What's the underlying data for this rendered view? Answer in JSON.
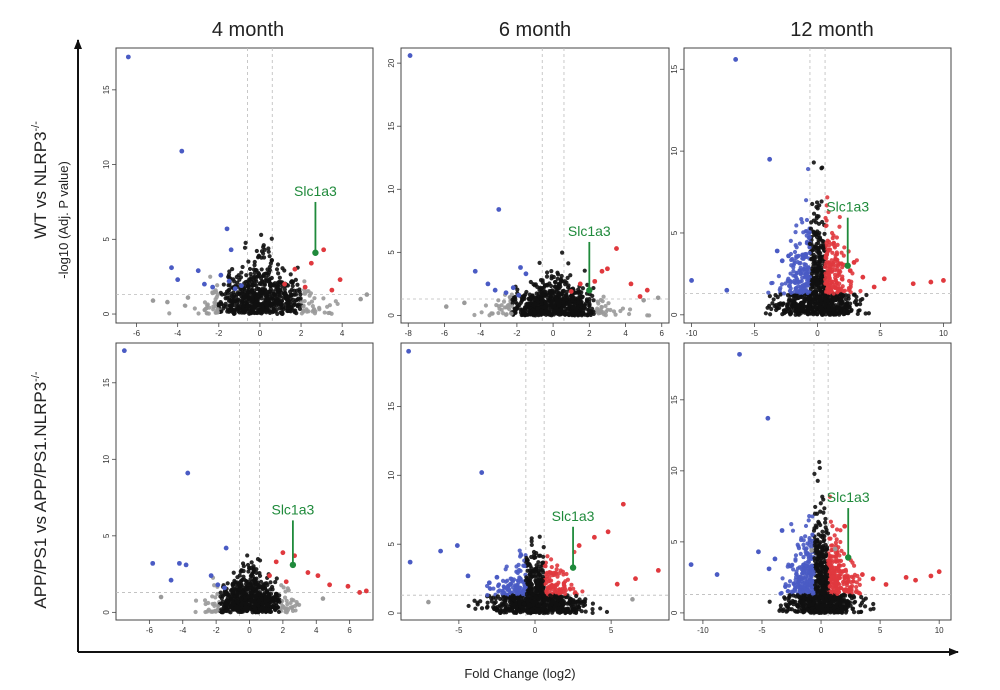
{
  "figure": {
    "column_titles": [
      "4 month",
      "6 month",
      "12 month"
    ],
    "row_labels": {
      "top": {
        "base": "WT vs NLRP3",
        "sup": "-/-"
      },
      "bottom": {
        "base": "APP/PS1 vs APP/PS1.NLRP3",
        "sup": "-/-"
      }
    },
    "ylabel": "-log10 (Adj. P value)",
    "xlabel": "Fold Change (log2)"
  },
  "colors": {
    "up": "#e0393e",
    "down": "#4a5bc4",
    "ns": "#111111",
    "ns_light": "#9a9a9a",
    "annotation": "#1f8a3b",
    "frame": "#444444",
    "guide": "#bbbbbb"
  },
  "chart_data": [
    {
      "type": "scatter",
      "title": "WT vs NLRP3-/- 4 month",
      "xlim": [
        -7,
        5.5
      ],
      "ylim": [
        -0.6,
        17.8
      ],
      "xticks": [
        -6,
        -4,
        -2,
        0,
        2,
        4
      ],
      "yticks": [
        0,
        5,
        10,
        15
      ],
      "fc_threshold": 0.6,
      "p_threshold": 1.3,
      "cloud": {
        "xspread": 4.5,
        "ymax": 2.5,
        "n": 650
      },
      "highlight": {
        "label": "Slc1a3",
        "x": 2.7,
        "y": 4.1,
        "label_y": 7.9
      },
      "down_points": [
        [
          -6.4,
          17.2
        ],
        [
          -3.8,
          10.9
        ],
        [
          -1.6,
          5.7
        ],
        [
          -4.3,
          3.1
        ],
        [
          -4.0,
          2.3
        ],
        [
          -3.0,
          2.9
        ],
        [
          -2.7,
          2.0
        ],
        [
          -2.3,
          1.8
        ],
        [
          -1.9,
          2.6
        ],
        [
          -1.5,
          2.2
        ],
        [
          -1.4,
          4.3
        ],
        [
          -1.2,
          1.7
        ],
        [
          -0.9,
          1.9
        ]
      ],
      "up_points": [
        [
          3.1,
          4.3
        ],
        [
          2.5,
          3.4
        ],
        [
          3.9,
          2.3
        ],
        [
          1.7,
          3.0
        ],
        [
          1.2,
          2.0
        ],
        [
          2.2,
          1.8
        ],
        [
          3.5,
          1.6
        ]
      ],
      "ns_points": [
        [
          4.9,
          1.0
        ],
        [
          5.2,
          1.3
        ],
        [
          -5.2,
          0.9
        ],
        [
          -4.5,
          0.8
        ],
        [
          -3.5,
          1.1
        ]
      ]
    },
    {
      "type": "scatter",
      "title": "WT vs NLRP3-/- 6 month",
      "xlim": [
        -8.4,
        6.4
      ],
      "ylim": [
        -0.6,
        21.2
      ],
      "xticks": [
        -8,
        -6,
        -4,
        -2,
        0,
        2,
        4,
        6
      ],
      "yticks": [
        0,
        5,
        10,
        15,
        20
      ],
      "fc_threshold": 0.6,
      "p_threshold": 1.3,
      "cloud": {
        "xspread": 5,
        "ymax": 2.0,
        "n": 700
      },
      "highlight": {
        "label": "Slc1a3",
        "x": 2.0,
        "y": 2.0,
        "label_y": 6.3
      },
      "down_points": [
        [
          -7.9,
          20.6
        ],
        [
          -3.0,
          8.4
        ],
        [
          -4.3,
          3.5
        ],
        [
          -1.8,
          3.8
        ],
        [
          -1.5,
          3.3
        ],
        [
          -3.6,
          2.5
        ],
        [
          -3.2,
          2.0
        ],
        [
          -2.6,
          1.8
        ],
        [
          -2.2,
          2.2
        ],
        [
          -1.9,
          1.6
        ]
      ],
      "up_points": [
        [
          3.5,
          5.3
        ],
        [
          3.0,
          3.7
        ],
        [
          2.7,
          3.5
        ],
        [
          4.3,
          2.5
        ],
        [
          5.2,
          2.0
        ],
        [
          4.8,
          1.5
        ],
        [
          1.5,
          2.5
        ],
        [
          2.3,
          2.7
        ],
        [
          1.0,
          1.9
        ]
      ],
      "ns_points": [
        [
          -5.9,
          0.7
        ],
        [
          5.0,
          1.2
        ],
        [
          5.8,
          1.4
        ],
        [
          -4.9,
          1.0
        ]
      ]
    },
    {
      "type": "scatter",
      "title": "WT vs NLRP3-/- 12 month",
      "xlim": [
        -10.6,
        10.6
      ],
      "ylim": [
        -0.5,
        16.3
      ],
      "xticks": [
        -10,
        -5,
        0,
        5,
        10
      ],
      "yticks": [
        0,
        5,
        10,
        15
      ],
      "fc_threshold": 0.6,
      "p_threshold": 1.3,
      "cloud": {
        "xspread": 5,
        "ymax": 4,
        "n": 1000,
        "colored": true
      },
      "highlight": {
        "label": "Slc1a3",
        "x": 2.4,
        "y": 3.0,
        "label_y": 6.3
      },
      "down_points": [
        [
          -6.5,
          15.6
        ],
        [
          -3.8,
          9.5
        ],
        [
          -10.0,
          2.1
        ],
        [
          -7.2,
          1.5
        ],
        [
          -3.2,
          3.9
        ],
        [
          -2.8,
          3.3
        ],
        [
          -2.3,
          3.6
        ]
      ],
      "up_points": [
        [
          10.0,
          2.1
        ],
        [
          9.0,
          2.0
        ],
        [
          7.6,
          1.9
        ],
        [
          5.3,
          2.2
        ],
        [
          3.6,
          2.3
        ],
        [
          2.9,
          3.2
        ],
        [
          2.6,
          2.7
        ],
        [
          4.5,
          1.7
        ]
      ],
      "ns_points": []
    },
    {
      "type": "scatter",
      "title": "APP/PS1 vs APP/PS1.NLRP3-/- 4 month",
      "xlim": [
        -8.0,
        7.4
      ],
      "ylim": [
        -0.5,
        17.6
      ],
      "xticks": [
        -6,
        -4,
        -2,
        0,
        2,
        4,
        6
      ],
      "yticks": [
        0,
        5,
        10,
        15
      ],
      "fc_threshold": 0.6,
      "p_threshold": 1.3,
      "cloud": {
        "xspread": 4,
        "ymax": 2.0,
        "n": 650
      },
      "highlight": {
        "label": "Slc1a3",
        "x": 2.6,
        "y": 3.1,
        "label_y": 6.4
      },
      "down_points": [
        [
          -7.5,
          17.1
        ],
        [
          -3.7,
          9.1
        ],
        [
          -5.8,
          3.2
        ],
        [
          -4.2,
          3.2
        ],
        [
          -3.8,
          3.1
        ],
        [
          -1.4,
          4.2
        ],
        [
          -2.3,
          2.4
        ],
        [
          -1.9,
          1.8
        ],
        [
          -1.5,
          1.6
        ],
        [
          -4.7,
          2.1
        ]
      ],
      "up_points": [
        [
          2.7,
          3.7
        ],
        [
          2.0,
          3.9
        ],
        [
          1.6,
          3.3
        ],
        [
          3.5,
          2.6
        ],
        [
          4.1,
          2.4
        ],
        [
          4.8,
          1.8
        ],
        [
          5.9,
          1.7
        ],
        [
          6.6,
          1.3
        ],
        [
          7.0,
          1.4
        ],
        [
          1.2,
          2.4
        ],
        [
          2.2,
          2.0
        ]
      ],
      "ns_points": [
        [
          -5.3,
          1.0
        ],
        [
          4.4,
          0.9
        ]
      ]
    },
    {
      "type": "scatter",
      "title": "APP/PS1 vs APP/PS1.NLRP3-/- 6 month",
      "xlim": [
        -8.8,
        8.8
      ],
      "ylim": [
        -0.5,
        19.6
      ],
      "xticks": [
        -5,
        0,
        5
      ],
      "yticks": [
        0,
        5,
        10,
        15
      ],
      "fc_threshold": 0.6,
      "p_threshold": 1.3,
      "cloud": {
        "xspread": 5,
        "ymax": 2.8,
        "n": 900,
        "colored": true
      },
      "highlight": {
        "label": "Slc1a3",
        "x": 2.5,
        "y": 3.3,
        "label_y": 6.7
      },
      "down_points": [
        [
          -8.3,
          19.0
        ],
        [
          -3.5,
          10.2
        ],
        [
          -8.2,
          3.7
        ],
        [
          -5.1,
          4.9
        ],
        [
          -6.2,
          4.5
        ],
        [
          -4.4,
          2.7
        ],
        [
          -3.0,
          2.2
        ],
        [
          -2.5,
          2.6
        ],
        [
          -1.6,
          2.1
        ],
        [
          -1.2,
          1.9
        ]
      ],
      "up_points": [
        [
          5.8,
          7.9
        ],
        [
          4.8,
          5.9
        ],
        [
          3.9,
          5.5
        ],
        [
          2.9,
          4.9
        ],
        [
          8.1,
          3.1
        ],
        [
          6.6,
          2.5
        ],
        [
          5.4,
          2.1
        ]
      ],
      "ns_points": [
        [
          -7.0,
          0.8
        ],
        [
          6.4,
          1.0
        ]
      ]
    },
    {
      "type": "scatter",
      "title": "APP/PS1 vs APP/PS1.NLRP3-/- 12 month",
      "xlim": [
        -11.6,
        11.0
      ],
      "ylim": [
        -0.5,
        19.0
      ],
      "xticks": [
        -10,
        -5,
        0,
        5,
        10
      ],
      "yticks": [
        0,
        5,
        10,
        15
      ],
      "fc_threshold": 0.6,
      "p_threshold": 1.3,
      "cloud": {
        "xspread": 5,
        "ymax": 4.5,
        "n": 1100,
        "colored": true
      },
      "highlight": {
        "label": "Slc1a3",
        "x": 2.3,
        "y": 3.9,
        "label_y": 7.8
      },
      "down_points": [
        [
          -6.9,
          18.2
        ],
        [
          -4.5,
          13.7
        ],
        [
          -11.0,
          3.4
        ],
        [
          -8.8,
          2.7
        ],
        [
          -5.3,
          4.3
        ],
        [
          -4.4,
          3.1
        ],
        [
          -3.9,
          3.8
        ],
        [
          -3.3,
          5.8
        ],
        [
          -2.6,
          3.3
        ]
      ],
      "up_points": [
        [
          2.0,
          6.1
        ],
        [
          7.2,
          2.5
        ],
        [
          9.3,
          2.6
        ],
        [
          10.0,
          2.9
        ],
        [
          4.4,
          2.4
        ],
        [
          5.5,
          2.0
        ],
        [
          3.5,
          2.7
        ],
        [
          8.0,
          2.3
        ]
      ],
      "ns_points": [
        [
          -0.8,
          4.4
        ],
        [
          1.2,
          4.5
        ]
      ]
    }
  ]
}
